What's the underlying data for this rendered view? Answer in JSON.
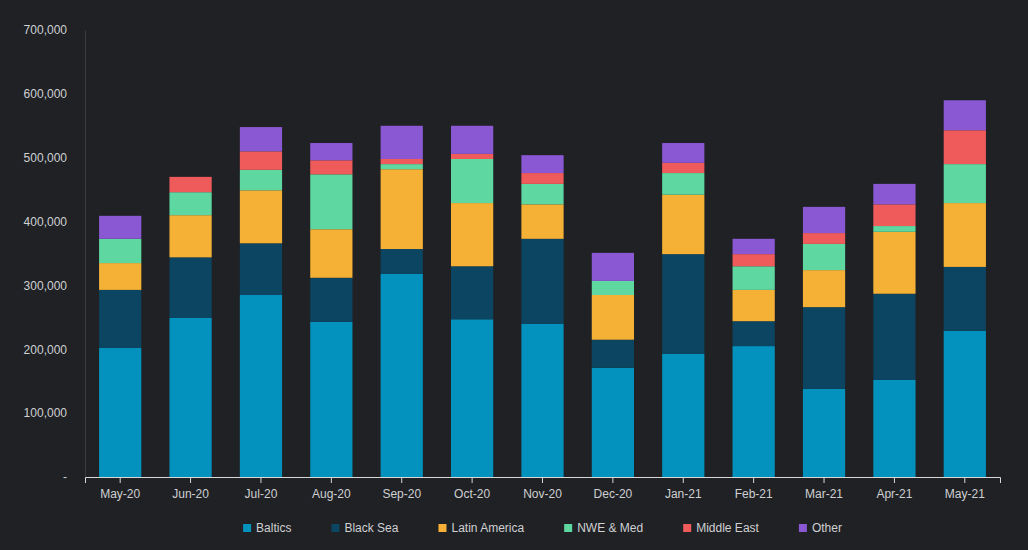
{
  "chart_data": {
    "type": "bar",
    "stacked": true,
    "legend": "bottom",
    "grid": false,
    "categories": [
      "May-20",
      "Jun-20",
      "Jul-20",
      "Aug-20",
      "Sep-20",
      "Oct-20",
      "Nov-20",
      "Dec-20",
      "Jan-21",
      "Feb-21",
      "Mar-21",
      "Apr-21",
      "May-21"
    ],
    "ylim": [
      0,
      700000
    ],
    "yticks": [
      {
        "value": 0,
        "label": "-"
      },
      {
        "value": 100000,
        "label": "100,000"
      },
      {
        "value": 200000,
        "label": "200,000"
      },
      {
        "value": 300000,
        "label": "300,000"
      },
      {
        "value": 400000,
        "label": "400,000"
      },
      {
        "value": 500000,
        "label": "500,000"
      },
      {
        "value": 600000,
        "label": "600,000"
      },
      {
        "value": 700000,
        "label": "700,000"
      }
    ],
    "series": [
      {
        "name": "Baltics",
        "color": "#0391bd",
        "values": [
          202000,
          249000,
          285000,
          243000,
          318000,
          247000,
          240000,
          171000,
          193000,
          205000,
          138000,
          152000,
          229000
        ]
      },
      {
        "name": "Black Sea",
        "color": "#0b4561",
        "values": [
          91000,
          95000,
          81000,
          69000,
          39000,
          83000,
          133000,
          44000,
          156000,
          39000,
          128000,
          135000,
          100000
        ]
      },
      {
        "name": "Latin America",
        "color": "#f4b136",
        "values": [
          42000,
          66000,
          83000,
          76000,
          125000,
          99000,
          54000,
          70000,
          93000,
          49000,
          58000,
          97000,
          100000
        ]
      },
      {
        "name": "NWE & Med",
        "color": "#5ed7a0",
        "values": [
          38000,
          36000,
          32000,
          86000,
          8000,
          69000,
          32000,
          22000,
          34000,
          37000,
          41000,
          9000,
          61000
        ]
      },
      {
        "name": "Middle East",
        "color": "#ef5b5b",
        "values": [
          0,
          24000,
          29000,
          22000,
          8000,
          8000,
          17000,
          0,
          16000,
          19000,
          17000,
          34000,
          53000
        ]
      },
      {
        "name": "Other",
        "color": "#8a58d3",
        "values": [
          36000,
          0,
          38000,
          27000,
          52000,
          44000,
          28000,
          44000,
          31000,
          24000,
          41000,
          32000,
          47000
        ]
      }
    ]
  }
}
